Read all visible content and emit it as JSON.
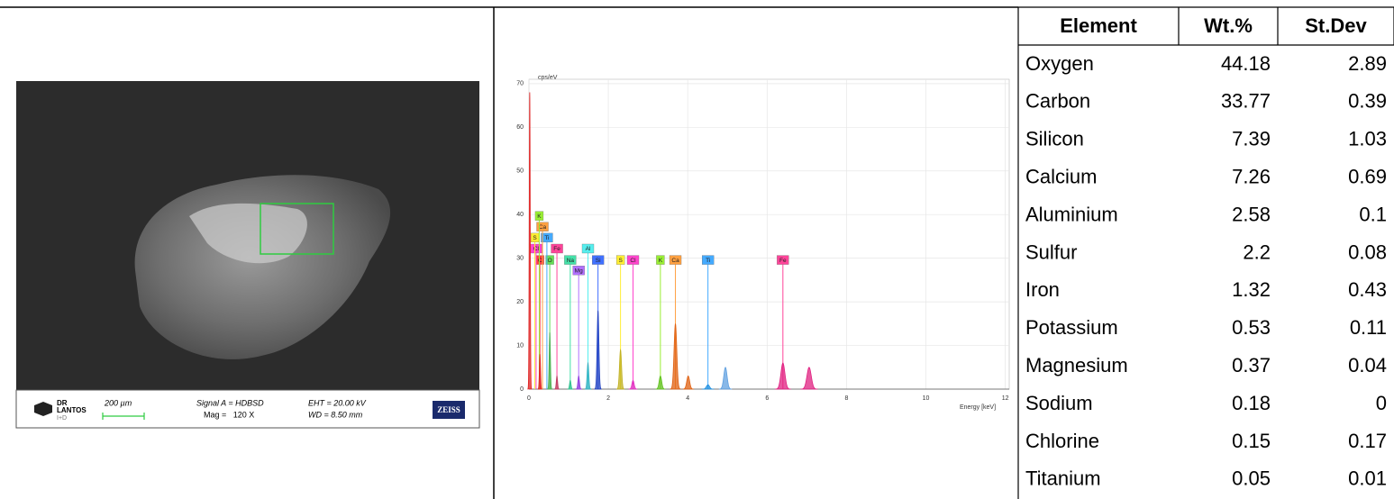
{
  "sem_image": {
    "logo_top": "DR",
    "logo_name": "LANTOS",
    "logo_sub": "I+D",
    "scale_bar": "200 µm",
    "signal": "Signal A = HDBSD",
    "mag": "Mag =   120 X",
    "eht": "EHT = 20.00 kV",
    "wd": "WD = 8.50 mm",
    "brand": "ZEISS"
  },
  "chart_data": {
    "type": "spectrum",
    "y_label": "cps/eV",
    "x_label": "Energy [keV]",
    "xlim": [
      0,
      12.1
    ],
    "ylim": [
      0,
      71
    ],
    "xticks": [
      0,
      2,
      4,
      6,
      8,
      10,
      12
    ],
    "yticks": [
      0,
      10,
      20,
      30,
      40,
      50,
      60,
      70
    ],
    "grid": true,
    "peaks": {
      "x": [
        0.02,
        0.277,
        0.525,
        0.705,
        1.041,
        1.253,
        1.487,
        1.74,
        2.307,
        2.622,
        3.312,
        3.69,
        4.012,
        4.51,
        4.95,
        6.398,
        7.058
      ],
      "values": [
        68,
        8,
        13,
        3,
        2,
        3,
        6,
        18,
        9,
        2,
        3,
        15,
        3,
        1,
        5,
        6,
        5
      ],
      "colors": [
        "#e02020",
        "#e02020",
        "#4caf50",
        "#c04060",
        "#30c090",
        "#9040e0",
        "#30b0c0",
        "#2040c0",
        "#c0b020",
        "#e030c0",
        "#60c020",
        "#e06010",
        "#e06010",
        "#2090e0",
        "#60a0e0",
        "#e02080",
        "#e02080"
      ]
    },
    "element_labels": [
      {
        "label": "C",
        "x": 0.277,
        "color": "#ff4040"
      },
      {
        "label": "O",
        "x": 0.525,
        "color": "#66dd55"
      },
      {
        "label": "Na",
        "x": 1.041,
        "color": "#44e0a8"
      },
      {
        "label": "Mg",
        "x": 1.253,
        "color": "#b070ff"
      },
      {
        "label": "Si",
        "x": 1.74,
        "color": "#4070ff"
      },
      {
        "label": "S",
        "x": 2.307,
        "color": "#ffee33"
      },
      {
        "label": "Cl",
        "x": 2.622,
        "color": "#ff44cc"
      },
      {
        "label": "K",
        "x": 3.312,
        "color": "#99ee33"
      },
      {
        "label": "Ca",
        "x": 3.69,
        "color": "#ffa040"
      },
      {
        "label": "Ti",
        "x": 4.51,
        "color": "#44aaff"
      },
      {
        "label": "Fe",
        "x": 6.398,
        "color": "#ff4499"
      },
      {
        "label": "Cl",
        "x": 0.18,
        "color": "#ff44cc"
      },
      {
        "label": "Fe",
        "x": 0.705,
        "color": "#ff4499"
      },
      {
        "label": "Al",
        "x": 1.487,
        "color": "#55eeee"
      },
      {
        "label": "S",
        "x": 0.149,
        "color": "#ffee33"
      },
      {
        "label": "Ti",
        "x": 0.452,
        "color": "#44aaff"
      },
      {
        "label": "Ca",
        "x": 0.341,
        "color": "#ffa040"
      },
      {
        "label": "K",
        "x": 0.26,
        "color": "#99ee33"
      }
    ]
  },
  "table": {
    "header": [
      "Element",
      "Wt.%",
      "St.Dev"
    ],
    "rows": [
      [
        "Oxygen",
        44.18,
        2.89
      ],
      [
        "Carbon",
        33.77,
        0.39
      ],
      [
        "Silicon",
        7.39,
        1.03
      ],
      [
        "Calcium",
        7.26,
        0.69
      ],
      [
        "Aluminium",
        2.58,
        0.1
      ],
      [
        "Sulfur",
        2.2,
        0.08
      ],
      [
        "Iron",
        1.32,
        0.43
      ],
      [
        "Potassium",
        0.53,
        0.11
      ],
      [
        "Magnesium",
        0.37,
        0.04
      ],
      [
        "Sodium",
        0.18,
        0
      ],
      [
        "Chlorine",
        0.15,
        0.17
      ],
      [
        "Titanium",
        0.05,
        0.01
      ]
    ]
  }
}
